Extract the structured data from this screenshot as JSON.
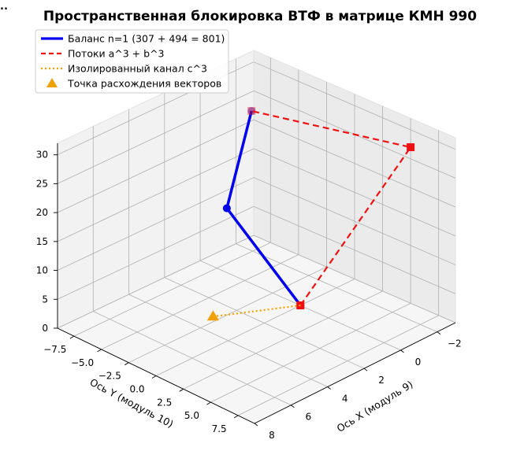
{
  "chart_data": {
    "type": "line3d",
    "title": "Пространственная блокировка ВТФ в матрице КМН 990",
    "corner_mark": "..",
    "xlabel": "Ось X (модуль 9)",
    "ylabel": "Ось Y (модуль 10)",
    "zlabel": "",
    "xlim": [
      -3,
      8
    ],
    "ylim": [
      -9,
      9
    ],
    "zlim": [
      0,
      32
    ],
    "x_ticks": [
      -2,
      0,
      2,
      4,
      6,
      8
    ],
    "x_tick_labels": [
      "−2",
      "0",
      "2",
      "4",
      "6",
      "8"
    ],
    "y_ticks": [
      -7.5,
      -5.0,
      -2.5,
      0.0,
      2.5,
      5.0,
      7.5
    ],
    "y_tick_labels": [
      "−7.5",
      "−5.0",
      "−2.5",
      "0.0",
      "2.5",
      "5.0",
      "7.5"
    ],
    "z_ticks": [
      0,
      5,
      10,
      15,
      20,
      25,
      30
    ],
    "z_tick_labels": [
      "0",
      "5",
      "10",
      "15",
      "20",
      "25",
      "30"
    ],
    "grid": true,
    "legend_position": "top-left",
    "series": [
      {
        "name": "Баланс n=1 (307 + 494 = 801)",
        "style": "solid",
        "color": "#0000ee",
        "marker": "circle",
        "points": [
          [
            0,
            0,
            0
          ],
          [
            1,
            -5,
            14
          ],
          [
            -1,
            -6,
            27
          ]
        ]
      },
      {
        "name": "Потоки a^3 + b^3",
        "style": "dashed",
        "color": "#ee1111",
        "marker": "square",
        "points": [
          [
            0,
            0,
            0
          ],
          [
            -3,
            5,
            27
          ],
          [
            -1,
            -6,
            27
          ]
        ]
      },
      {
        "name": "Изолированный канал c^3",
        "style": "dotted",
        "color": "#f0a000",
        "marker": "none",
        "points": [
          [
            0,
            0,
            0
          ],
          [
            3,
            -3,
            0
          ]
        ]
      },
      {
        "name": "Точка расхождения векторов",
        "style": "none",
        "color": "#f0a000",
        "marker": "triangle",
        "points": [
          [
            3,
            -3,
            0
          ]
        ]
      }
    ]
  }
}
